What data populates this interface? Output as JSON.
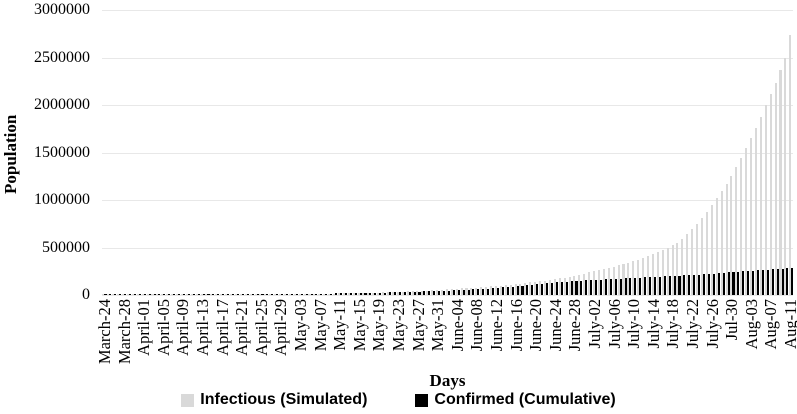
{
  "chart_data": {
    "type": "bar",
    "title": "",
    "xlabel": "Days",
    "ylabel": "Population",
    "ylim": [
      0,
      3000000
    ],
    "grid": true,
    "grid_color": "#e8e8e8",
    "legend_position": "bottom",
    "y_ticks": [
      0,
      500000,
      1000000,
      1500000,
      2000000,
      2500000,
      3000000
    ],
    "y_tick_labels": [
      "0",
      "500000",
      "1000000",
      "1500000",
      "2000000",
      "2500000",
      "3000000"
    ],
    "n_days": 141,
    "tick_every": 4,
    "tick_labels": [
      "March-24",
      "March-28",
      "April-01",
      "April-05",
      "April-09",
      "April-13",
      "April-17",
      "April-21",
      "April-25",
      "April-29",
      "May-03",
      "May-07",
      "May-11",
      "May-15",
      "May-19",
      "May-23",
      "May-27",
      "May-31",
      "June-04",
      "June-08",
      "June-12",
      "June-16",
      "June-20",
      "June-24",
      "June-28",
      "July-02",
      "July-06",
      "July-10",
      "July-14",
      "July-18",
      "July-22",
      "July-26",
      "Jul-30",
      "Aug-03",
      "Aug-07",
      "Aug-11"
    ],
    "series": [
      {
        "name": "Infectious (Simulated)",
        "color": "#d9d9d9",
        "values": [
          300,
          300,
          400,
          400,
          500,
          500,
          600,
          600,
          700,
          800,
          900,
          1000,
          1100,
          1100,
          1200,
          1300,
          1500,
          1600,
          1700,
          1800,
          2000,
          2200,
          2400,
          2600,
          2800,
          3000,
          3300,
          3500,
          3800,
          4200,
          4500,
          4900,
          5300,
          5700,
          6200,
          6700,
          7300,
          7900,
          8500,
          9200,
          10000,
          10600,
          11200,
          11900,
          12700,
          13400,
          14200,
          15100,
          16000,
          17000,
          18000,
          19100,
          20300,
          21600,
          22900,
          24400,
          25900,
          27500,
          29200,
          31100,
          33000,
          35000,
          37200,
          39500,
          41900,
          44500,
          47200,
          50100,
          53200,
          56500,
          60000,
          62800,
          65800,
          68900,
          72100,
          75500,
          79100,
          82800,
          86700,
          90700,
          95000,
          99600,
          104400,
          109400,
          114600,
          120200,
          125900,
          132000,
          138300,
          145000,
          152000,
          159300,
          167000,
          175000,
          184100,
          193800,
          203900,
          214600,
          225800,
          237600,
          250000,
          261400,
          273300,
          285700,
          298700,
          312200,
          326400,
          341300,
          356800,
          373000,
          390000,
          409600,
          430300,
          451900,
          474700,
          498600,
          523700,
          550000,
          594700,
          643000,
          695200,
          751600,
          812700,
          878700,
          950000,
          1018800,
          1092600,
          1171800,
          1256700,
          1347700,
          1445300,
          1550000,
          1652000,
          1760700,
          1876500,
          2000000,
          2114700,
          2236100,
          2364400,
          2500000,
          2740000
        ]
      },
      {
        "name": "Confirmed (Cumulative)",
        "color": "#000000",
        "values": [
          400,
          450,
          500,
          560,
          620,
          690,
          770,
          870,
          960,
          1080,
          1200,
          1300,
          1450,
          1580,
          1730,
          1900,
          2080,
          2280,
          2500,
          2740,
          3000,
          3200,
          3450,
          3700,
          3950,
          4250,
          4550,
          4900,
          5250,
          5600,
          6000,
          6400,
          6800,
          7200,
          7700,
          8100,
          8600,
          9200,
          9800,
          10400,
          11000,
          11600,
          12300,
          13000,
          13700,
          14500,
          15300,
          16100,
          17000,
          18000,
          19000,
          19900,
          20800,
          21800,
          22800,
          23900,
          25000,
          26200,
          27400,
          28700,
          30000,
          31300,
          32700,
          34100,
          35600,
          37200,
          38800,
          40500,
          42300,
          44100,
          46000,
          48300,
          50700,
          53300,
          55900,
          58700,
          61700,
          64800,
          68000,
          71400,
          75000,
          79400,
          84100,
          89100,
          94400,
          100000,
          105000,
          110000,
          115000,
          120000,
          125000,
          129000,
          133000,
          137000,
          141000,
          145000,
          148000,
          151000,
          154000,
          157000,
          160000,
          162400,
          164800,
          167200,
          169600,
          172000,
          174600,
          177200,
          179800,
          182400,
          185000,
          187600,
          190200,
          192800,
          195400,
          198000,
          200800,
          203600,
          206400,
          209200,
          212000,
          215600,
          219200,
          222800,
          226400,
          230000,
          233600,
          237200,
          240800,
          244400,
          248000,
          251600,
          255200,
          258800,
          262400,
          266000,
          269800,
          273600,
          277400,
          281200,
          285000
        ]
      }
    ]
  }
}
